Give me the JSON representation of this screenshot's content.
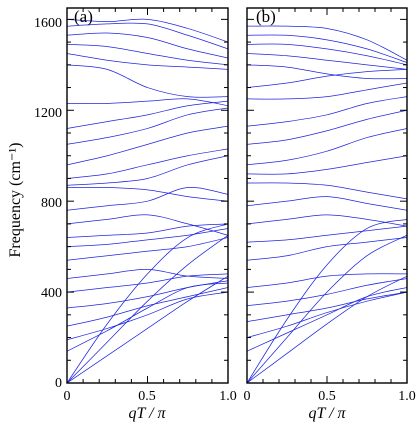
{
  "chart_data": {
    "type": "line",
    "ylabel": "Frequency (cm⁻¹)",
    "xlabel": "qT / π",
    "xlim": [
      0,
      1.0
    ],
    "ylim": [
      0,
      1650
    ],
    "x_ticks": [
      "0",
      "0.5",
      "1.0"
    ],
    "y_ticks": [
      "0",
      "400",
      "800",
      "1200",
      "1600"
    ],
    "line_color": "#1f25e0",
    "panels": [
      {
        "label": "(a)",
        "x": [
          0,
          0.25,
          0.5,
          0.75,
          1.0
        ],
        "series": [
          {
            "values": [
              0,
              120,
              240,
              360,
              470
            ]
          },
          {
            "values": [
              0,
              180,
              360,
              520,
              650
            ]
          },
          {
            "values": [
              0,
              260,
              480,
              640,
              700
            ]
          },
          {
            "values": [
              140,
              230,
              330,
              420,
              440
            ]
          },
          {
            "values": [
              190,
              240,
              300,
              370,
              400
            ]
          },
          {
            "values": [
              250,
              290,
              340,
              380,
              420
            ]
          },
          {
            "values": [
              330,
              350,
              380,
              420,
              450
            ]
          },
          {
            "values": [
              400,
              420,
              440,
              470,
              480
            ]
          },
          {
            "values": [
              460,
              480,
              500,
              470,
              460
            ]
          },
          {
            "values": [
              540,
              560,
              580,
              600,
              640
            ]
          },
          {
            "values": [
              600,
              610,
              630,
              650,
              680
            ]
          },
          {
            "values": [
              640,
              650,
              660,
              690,
              700
            ]
          },
          {
            "values": [
              700,
              720,
              740,
              700,
              650
            ]
          },
          {
            "values": [
              760,
              780,
              800,
              860,
              830
            ]
          },
          {
            "values": [
              860,
              860,
              850,
              820,
              800
            ]
          },
          {
            "values": [
              870,
              880,
              900,
              960,
              1000
            ]
          },
          {
            "values": [
              900,
              920,
              960,
              1000,
              1030
            ]
          },
          {
            "values": [
              960,
              1000,
              1050,
              1100,
              1130
            ]
          },
          {
            "values": [
              1050,
              1080,
              1120,
              1180,
              1210
            ]
          },
          {
            "values": [
              1120,
              1150,
              1180,
              1220,
              1240
            ]
          },
          {
            "values": [
              1230,
              1230,
              1240,
              1250,
              1220
            ]
          },
          {
            "values": [
              1400,
              1380,
              1300,
              1260,
              1260
            ]
          },
          {
            "values": [
              1450,
              1420,
              1400,
              1390,
              1380
            ]
          },
          {
            "values": [
              1490,
              1480,
              1450,
              1420,
              1400
            ]
          },
          {
            "values": [
              1530,
              1540,
              1520,
              1470,
              1430
            ]
          },
          {
            "values": [
              1570,
              1580,
              1580,
              1530,
              1470
            ]
          },
          {
            "values": [
              1600,
              1590,
              1600,
              1560,
              1500
            ]
          }
        ]
      },
      {
        "label": "(b)",
        "x": [
          0,
          0.25,
          0.5,
          0.75,
          1.0
        ],
        "series": [
          {
            "values": [
              0,
              130,
              260,
              380,
              470
            ]
          },
          {
            "values": [
              0,
              200,
              400,
              560,
              650
            ]
          },
          {
            "values": [
              0,
              280,
              520,
              680,
              720
            ]
          },
          {
            "values": [
              140,
              220,
              300,
              380,
              420
            ]
          },
          {
            "values": [
              200,
              250,
              310,
              360,
              400
            ]
          },
          {
            "values": [
              270,
              300,
              330,
              370,
              400
            ]
          },
          {
            "values": [
              340,
              360,
              390,
              430,
              460
            ]
          },
          {
            "values": [
              420,
              440,
              470,
              480,
              480
            ]
          },
          {
            "values": [
              540,
              560,
              600,
              620,
              640
            ]
          },
          {
            "values": [
              620,
              630,
              650,
              670,
              690
            ]
          },
          {
            "values": [
              700,
              720,
              740,
              720,
              690
            ]
          },
          {
            "values": [
              780,
              800,
              820,
              790,
              760
            ]
          },
          {
            "values": [
              880,
              880,
              870,
              840,
              810
            ]
          },
          {
            "values": [
              920,
              920,
              940,
              970,
              1000
            ]
          },
          {
            "values": [
              960,
              980,
              1020,
              1080,
              1120
            ]
          },
          {
            "values": [
              1050,
              1070,
              1110,
              1160,
              1200
            ]
          },
          {
            "values": [
              1130,
              1150,
              1180,
              1230,
              1260
            ]
          },
          {
            "values": [
              1250,
              1250,
              1260,
              1290,
              1320
            ]
          },
          {
            "values": [
              1300,
              1320,
              1350,
              1370,
              1380
            ]
          },
          {
            "values": [
              1400,
              1390,
              1360,
              1340,
              1340
            ]
          },
          {
            "values": [
              1450,
              1440,
              1420,
              1400,
              1380
            ]
          },
          {
            "values": [
              1490,
              1490,
              1470,
              1440,
              1400
            ]
          },
          {
            "values": [
              1530,
              1530,
              1510,
              1470,
              1410
            ]
          },
          {
            "values": [
              1570,
              1570,
              1560,
              1510,
              1420
            ]
          }
        ]
      }
    ]
  }
}
